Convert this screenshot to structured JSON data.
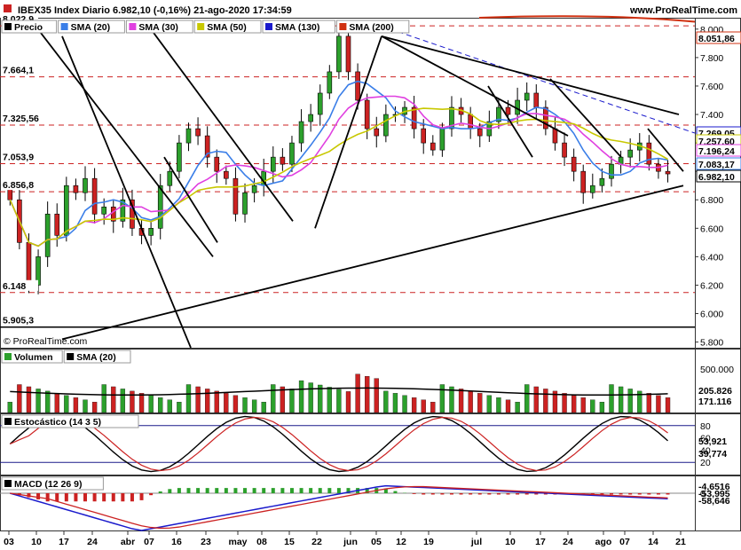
{
  "header": {
    "title": "IBEX35 Index Diario 6.982,10 (-0,16%) 21-ago-2020 17:34:59",
    "site": "www.ProRealTime.com"
  },
  "watermark": "© ProRealTime.com",
  "price_panel": {
    "legend": [
      {
        "label": "Precio",
        "color": "#000000"
      },
      {
        "label": "SMA (20)",
        "color": "#3a7ee8"
      },
      {
        "label": "SMA (30)",
        "color": "#e040e0"
      },
      {
        "label": "SMA (50)",
        "color": "#c8c800"
      },
      {
        "label": "SMA (130)",
        "color": "#1a1acc"
      },
      {
        "label": "SMA (200)",
        "color": "#d03010"
      }
    ],
    "left_levels": [
      {
        "label": "8.022,9",
        "value": 8022.9
      },
      {
        "label": "7.664,1",
        "value": 7664.1
      },
      {
        "label": "7.325,56",
        "value": 7325.56
      },
      {
        "label": "7.053,9",
        "value": 7053.9
      },
      {
        "label": "6.856,8",
        "value": 6856.8
      },
      {
        "label": "6.148",
        "value": 6148
      },
      {
        "label": "5.905,3",
        "value": 5905.3
      }
    ],
    "ticks": [
      "8.000",
      "7.800",
      "7.600",
      "7.400",
      "7.200",
      "7.000",
      "6.800",
      "6.600",
      "6.400",
      "6.200",
      "6.000",
      "5.800"
    ],
    "right_labels": [
      {
        "label": "8.051,86",
        "color": "#d03010"
      },
      {
        "label": "7.269,05",
        "color": "#1a1acc"
      },
      {
        "label": "7.257,60",
        "color": "#c8c800"
      },
      {
        "label": "7.196,24",
        "color": "#e040e0"
      },
      {
        "label": "7.083,17",
        "color": "#3a7ee8"
      },
      {
        "label": "6.982,10",
        "color": "#000000"
      }
    ]
  },
  "volume_panel": {
    "legend": [
      {
        "label": "Volumen",
        "color": "#2ca02c"
      },
      {
        "label": "SMA (20)",
        "color": "#000000"
      }
    ],
    "ticks": [
      "500.000"
    ],
    "right_labels": [
      {
        "label": "205.826",
        "color": "#000000"
      },
      {
        "label": "171.116",
        "color": "#cc2222"
      }
    ]
  },
  "stoch_panel": {
    "legend": [
      {
        "label": "Estocástico (14 3 5)",
        "color": "#000000"
      }
    ],
    "ticks": [
      "80",
      "60",
      "40",
      "20"
    ],
    "right_labels": [
      {
        "label": "53,921",
        "color": "#cc2222"
      },
      {
        "label": "39,774",
        "color": "#000000"
      }
    ]
  },
  "macd_panel": {
    "legend": [
      {
        "label": "MACD (12 26 9)",
        "color": "#000000"
      }
    ],
    "ticks": [
      "0"
    ],
    "right_labels": [
      {
        "label": "-4,6516",
        "color": "#cc2222"
      },
      {
        "label": "-53,995",
        "color": "#cc2222"
      },
      {
        "label": "-58,646",
        "color": "#1a1acc"
      }
    ]
  },
  "x_axis": [
    "03",
    "10",
    "17",
    "24",
    "abr",
    "07",
    "16",
    "23",
    "may",
    "08",
    "15",
    "22",
    "jun",
    "05",
    "12",
    "19",
    "jul",
    "10",
    "17",
    "24",
    "ago",
    "07",
    "14",
    "21"
  ],
  "colors": {
    "up": "#2ca02c",
    "down": "#cc2222",
    "dashed_level": "#cc2222",
    "frame": "#1a1a8a"
  },
  "chart_data": {
    "type": "line",
    "title": "IBEX35 Index Diario 6.982,10 (-0,16%) 21-ago-2020 17:34:59",
    "ylim": [
      5750,
      8100
    ],
    "close_approx": [
      6800,
      6500,
      6200,
      6400,
      6700,
      6550,
      6900,
      6850,
      6950,
      6700,
      6750,
      6650,
      6800,
      6600,
      6550,
      6600,
      6900,
      7000,
      7200,
      7300,
      7250,
      7100,
      7000,
      6950,
      6700,
      6850,
      6900,
      7000,
      7100,
      7050,
      7200,
      7350,
      7400,
      7550,
      7700,
      7950,
      7700,
      7500,
      7300,
      7250,
      7400,
      7400,
      7450,
      7300,
      7200,
      7150,
      7300,
      7450,
      7400,
      7300,
      7250,
      7350,
      7450,
      7400,
      7500,
      7550,
      7450,
      7300,
      7200,
      7100,
      7000,
      6850,
      6900,
      6950,
      7050,
      7100,
      7150,
      7200,
      7050,
      7000,
      6982.1
    ],
    "series": [
      {
        "name": "SMA (20)",
        "last": 7083.17
      },
      {
        "name": "SMA (30)",
        "last": 7196.24
      },
      {
        "name": "SMA (50)",
        "last": 7257.6
      },
      {
        "name": "SMA (130)",
        "last": 7269.05
      },
      {
        "name": "SMA (200)",
        "last": 8051.86
      }
    ]
  }
}
